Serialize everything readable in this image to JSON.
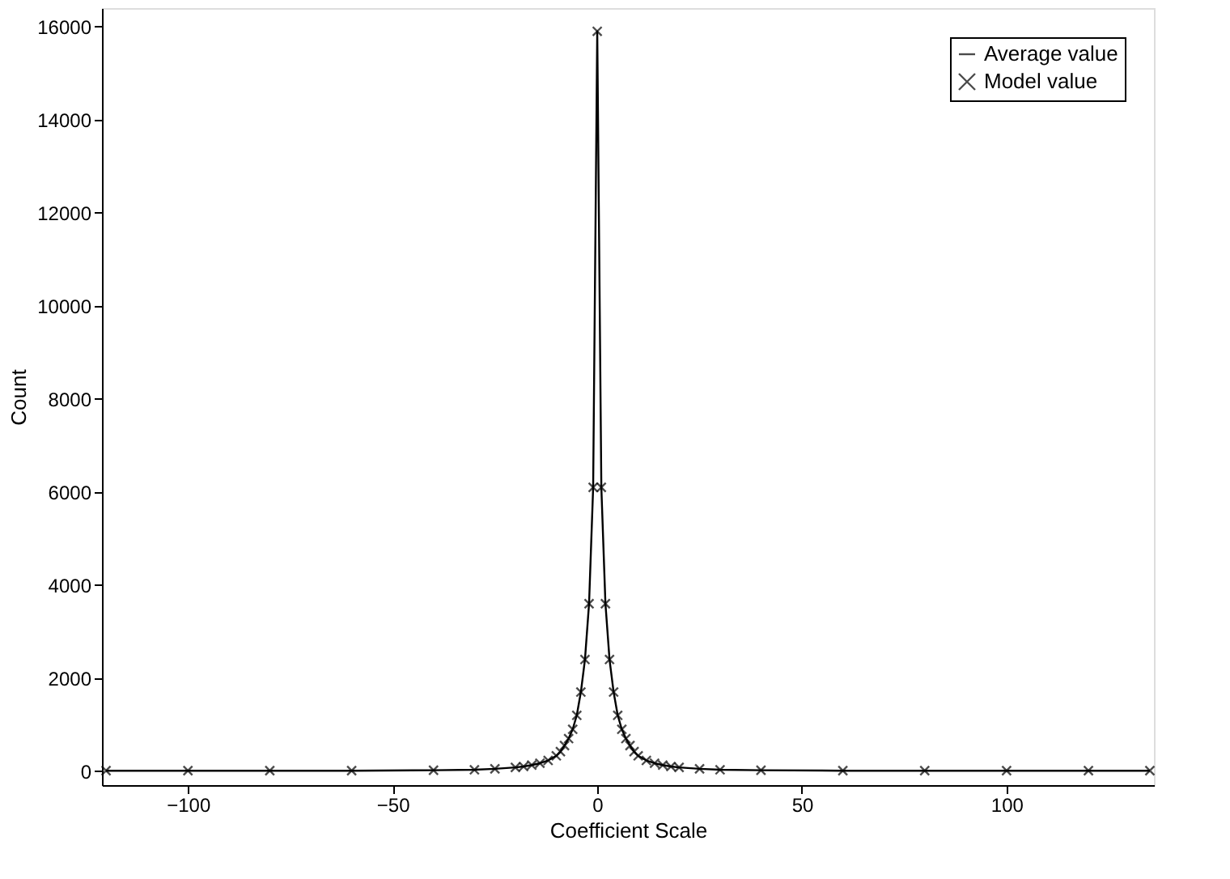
{
  "chart_data": {
    "type": "line",
    "xlabel": "Coefficient Scale",
    "ylabel": "Count",
    "xlim": [
      -121,
      136
    ],
    "ylim": [
      -300,
      16400
    ],
    "xticks": [
      -100,
      -50,
      0,
      50,
      100
    ],
    "yticks": [
      0,
      2000,
      4000,
      6000,
      8000,
      10000,
      12000,
      14000,
      16000
    ],
    "grid": false,
    "legend": "top right",
    "x": [
      -120,
      -100,
      -80,
      -60,
      -40,
      -30,
      -25,
      -20,
      -18,
      -16,
      -14,
      -12,
      -10,
      -9,
      -8,
      -7,
      -6,
      -5,
      -4,
      -3,
      -2,
      -1,
      0,
      1,
      2,
      3,
      4,
      5,
      6,
      7,
      8,
      9,
      10,
      12,
      14,
      16,
      18,
      20,
      25,
      30,
      40,
      60,
      80,
      100,
      120,
      135
    ],
    "series": [
      {
        "name": "Average value",
        "color": "#000000",
        "marker": "none",
        "line_style": "solid",
        "values": [
          10,
          10,
          10,
          10,
          20,
          30,
          50,
          80,
          100,
          130,
          170,
          230,
          330,
          420,
          550,
          700,
          900,
          1200,
          1700,
          2400,
          3600,
          6100,
          15900,
          6100,
          3600,
          2400,
          1700,
          1200,
          900,
          700,
          550,
          420,
          330,
          230,
          170,
          130,
          100,
          80,
          50,
          30,
          20,
          10,
          10,
          10,
          10,
          10
        ]
      },
      {
        "name": "Model value",
        "type": "scatter",
        "color": "#000000",
        "marker": "cross",
        "values": [
          10,
          10,
          10,
          10,
          20,
          30,
          50,
          80,
          100,
          130,
          170,
          230,
          330,
          420,
          550,
          700,
          900,
          1200,
          1700,
          2400,
          3600,
          6100,
          15900,
          6100,
          3600,
          2400,
          1700,
          1200,
          900,
          700,
          550,
          420,
          330,
          230,
          170,
          130,
          100,
          80,
          50,
          30,
          20,
          10,
          10,
          10,
          10,
          10
        ]
      }
    ]
  }
}
